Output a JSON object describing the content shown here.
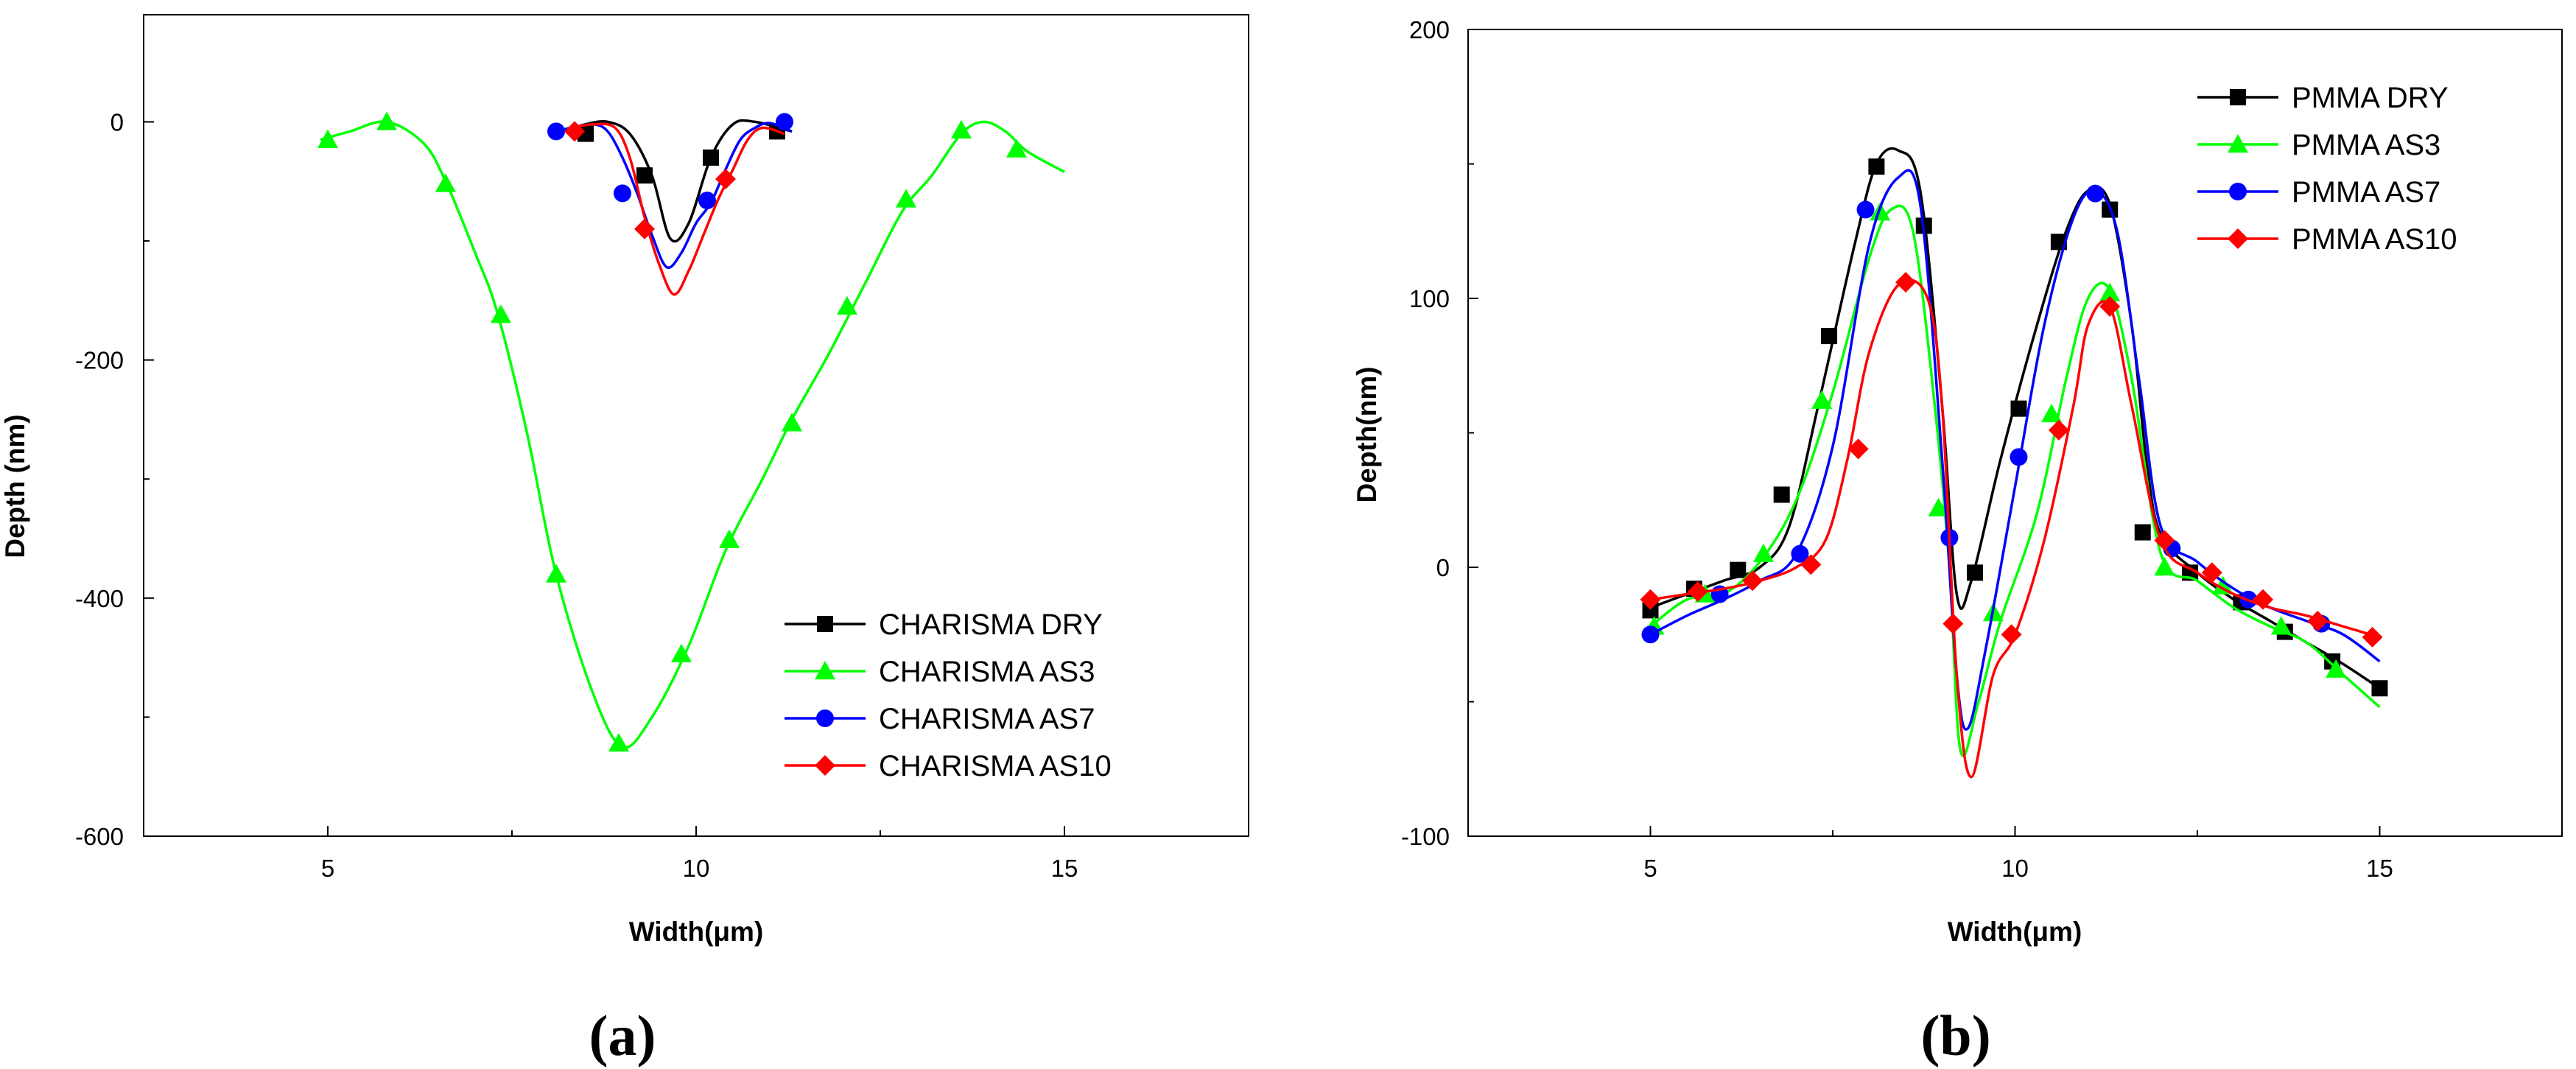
{
  "chart_data": [
    {
      "id": "a",
      "panel_label": "a",
      "type": "line",
      "xlabel": "Width(μm)",
      "ylabel": "Depth (nm)",
      "xlim": [
        2.5,
        17.5
      ],
      "ylim": [
        -600,
        90
      ],
      "xticks": [
        5,
        10,
        15
      ],
      "yticks": [
        0,
        -200,
        -400,
        -600
      ],
      "legend_position": "bottom-right",
      "series": [
        {
          "name": "CHARISMA DRY",
          "color": "#000000",
          "marker": "square",
          "x": [
            8.2,
            8.5,
            8.8,
            9.1,
            9.4,
            9.65,
            9.9,
            10.2,
            10.5,
            10.8,
            11.3
          ],
          "y": [
            -8,
            -2,
            0,
            -10,
            -45,
            -98,
            -85,
            -30,
            -2,
            0,
            -8
          ],
          "markers_x": [
            8.5,
            9.3,
            10.2,
            11.1
          ],
          "markers_y": [
            -10,
            -45,
            -30,
            -8
          ]
        },
        {
          "name": "CHARISMA AS3",
          "color": "#00ff00",
          "marker": "triangle",
          "x": [
            4.9,
            5.3,
            5.8,
            6.3,
            6.6,
            7.0,
            7.3,
            7.7,
            8.1,
            8.6,
            9.0,
            9.4,
            9.9,
            10.4,
            10.9,
            11.3,
            11.8,
            12.3,
            12.8,
            13.2,
            13.6,
            13.9,
            14.2,
            14.5,
            15.0
          ],
          "y": [
            -15,
            -8,
            0,
            -18,
            -50,
            -110,
            -160,
            -260,
            -380,
            -480,
            -525,
            -500,
            -440,
            -360,
            -300,
            -250,
            -195,
            -135,
            -75,
            -45,
            -10,
            0,
            -8,
            -25,
            -42
          ],
          "markers_x": [
            5.0,
            5.8,
            6.6,
            7.35,
            8.1,
            8.95,
            9.8,
            10.45,
            11.3,
            12.05,
            12.85,
            13.6,
            14.35
          ],
          "markers_y": [
            -15,
            0,
            -52,
            -162,
            -380,
            -522,
            -447,
            -351,
            -253,
            -155,
            -65,
            -7,
            -23
          ]
        },
        {
          "name": "CHARISMA AS7",
          "color": "#0000ff",
          "marker": "circle",
          "x": [
            8.1,
            8.3,
            8.6,
            8.8,
            9.0,
            9.2,
            9.4,
            9.6,
            9.8,
            10.0,
            10.2,
            10.4,
            10.6,
            10.8,
            11.0,
            11.3
          ],
          "y": [
            -8,
            -5,
            -2,
            -8,
            -30,
            -60,
            -95,
            -122,
            -110,
            -85,
            -68,
            -40,
            -15,
            -5,
            -1,
            -8
          ],
          "markers_x": [
            8.1,
            9.0,
            10.15,
            11.2
          ],
          "markers_y": [
            -8,
            -60,
            -66,
            0
          ]
        },
        {
          "name": "CHARISMA AS10",
          "color": "#ff0000",
          "marker": "diamond",
          "x": [
            8.3,
            8.6,
            8.9,
            9.1,
            9.3,
            9.5,
            9.7,
            9.9,
            10.1,
            10.3,
            10.5,
            10.7,
            10.9,
            11.2
          ],
          "y": [
            -5,
            -2,
            -5,
            -30,
            -80,
            -120,
            -145,
            -125,
            -95,
            -65,
            -40,
            -15,
            -5,
            -10
          ],
          "markers_x": [
            8.35,
            9.3,
            10.4
          ],
          "markers_y": [
            -8,
            -90,
            -48
          ]
        }
      ]
    },
    {
      "id": "b",
      "panel_label": "b",
      "type": "line",
      "xlabel": "Width(μm)",
      "ylabel": "Depth(nm)",
      "xlim": [
        2.5,
        17.5
      ],
      "ylim": [
        -100,
        200
      ],
      "xticks": [
        5,
        10,
        15
      ],
      "yticks": [
        200,
        100,
        0,
        -100
      ],
      "legend_position": "top-right",
      "series": [
        {
          "name": "PMMA DRY",
          "color": "#000000",
          "marker": "square",
          "x": [
            5.0,
            5.5,
            6.0,
            6.5,
            6.9,
            7.3,
            7.8,
            8.1,
            8.4,
            8.7,
            9.0,
            9.2,
            9.4,
            9.8,
            10.3,
            10.7,
            11.0,
            11.3,
            11.6,
            11.8,
            12.0,
            12.5,
            13.0,
            13.5,
            14.0,
            14.5,
            15.0
          ],
          "y": [
            -15,
            -10,
            -5,
            0,
            15,
            60,
            120,
            150,
            155,
            140,
            60,
            -10,
            -5,
            40,
            90,
            125,
            140,
            135,
            90,
            40,
            12,
            -2,
            -12,
            -20,
            -28,
            -36,
            -45
          ],
          "markers_x": [
            5.0,
            5.6,
            6.2,
            6.8,
            7.45,
            8.1,
            8.75,
            9.45,
            10.05,
            10.6,
            11.3,
            11.75,
            12.4,
            13.1,
            13.7,
            14.35,
            15.0
          ],
          "markers_y": [
            -16,
            -8,
            -1,
            27,
            86,
            149,
            127,
            -2,
            59,
            121,
            133,
            13,
            -2,
            -13,
            -24,
            -35,
            -45
          ]
        },
        {
          "name": "PMMA AS3",
          "color": "#00ff00",
          "marker": "triangle",
          "x": [
            5.0,
            5.5,
            6.0,
            6.5,
            7.0,
            7.5,
            8.0,
            8.3,
            8.6,
            8.9,
            9.1,
            9.25,
            9.5,
            9.8,
            10.3,
            10.7,
            11.0,
            11.3,
            11.6,
            12.0,
            12.5,
            13.0,
            13.5,
            14.0,
            14.5,
            15.0
          ],
          "y": [
            -22,
            -12,
            -10,
            2,
            25,
            65,
            115,
            133,
            125,
            60,
            0,
            -68,
            -50,
            -20,
            20,
            70,
            100,
            103,
            70,
            5,
            -5,
            -15,
            -22,
            -28,
            -40,
            -52
          ],
          "markers_x": [
            5.05,
            5.75,
            6.55,
            7.35,
            8.15,
            8.95,
            9.7,
            10.5,
            11.3,
            12.05,
            12.85,
            13.65,
            14.4
          ],
          "markers_y": [
            -22,
            -10,
            5,
            62,
            132,
            22,
            -17,
            57,
            102,
            0,
            -7,
            -22,
            -38
          ]
        },
        {
          "name": "PMMA AS7",
          "color": "#0000ff",
          "marker": "circle",
          "x": [
            5.0,
            5.5,
            6.0,
            6.5,
            7.0,
            7.5,
            8.0,
            8.4,
            8.7,
            9.0,
            9.2,
            9.35,
            9.6,
            10.0,
            10.4,
            10.8,
            11.1,
            11.4,
            11.7,
            12.0,
            12.5,
            13.0,
            13.5,
            14.0,
            14.5,
            15.0
          ],
          "y": [
            -25,
            -18,
            -12,
            -5,
            5,
            45,
            120,
            145,
            135,
            40,
            -40,
            -60,
            -30,
            30,
            90,
            130,
            140,
            125,
            70,
            15,
            2,
            -8,
            -15,
            -20,
            -25,
            -35
          ],
          "markers_x": [
            5.0,
            5.95,
            7.05,
            7.95,
            9.1,
            10.05,
            11.1,
            12.15,
            13.2,
            14.2
          ],
          "markers_y": [
            -25,
            -10,
            5,
            133,
            11,
            41,
            139,
            7,
            -12,
            -21
          ]
        },
        {
          "name": "PMMA AS10",
          "color": "#ff0000",
          "marker": "diamond",
          "x": [
            5.0,
            5.5,
            6.0,
            6.5,
            7.0,
            7.4,
            7.7,
            8.0,
            8.4,
            8.8,
            9.0,
            9.2,
            9.4,
            9.7,
            10.0,
            10.4,
            10.8,
            11.0,
            11.3,
            11.6,
            12.0,
            12.5,
            13.0,
            13.5,
            14.0,
            14.5,
            15.0
          ],
          "y": [
            -12,
            -10,
            -8,
            -5,
            0,
            10,
            40,
            80,
            105,
            100,
            60,
            -40,
            -78,
            -40,
            -25,
            10,
            60,
            90,
            97,
            60,
            10,
            -2,
            -10,
            -15,
            -18,
            -22,
            -26
          ],
          "markers_x": [
            5.0,
            5.65,
            6.4,
            7.2,
            7.85,
            8.5,
            9.15,
            9.95,
            10.6,
            11.3,
            12.05,
            12.7,
            13.4,
            14.15,
            14.9
          ],
          "markers_y": [
            -12,
            -9,
            -5,
            1,
            44,
            106,
            -21,
            -25,
            51,
            97,
            10,
            -2,
            -12,
            -20,
            -26
          ]
        }
      ]
    }
  ]
}
